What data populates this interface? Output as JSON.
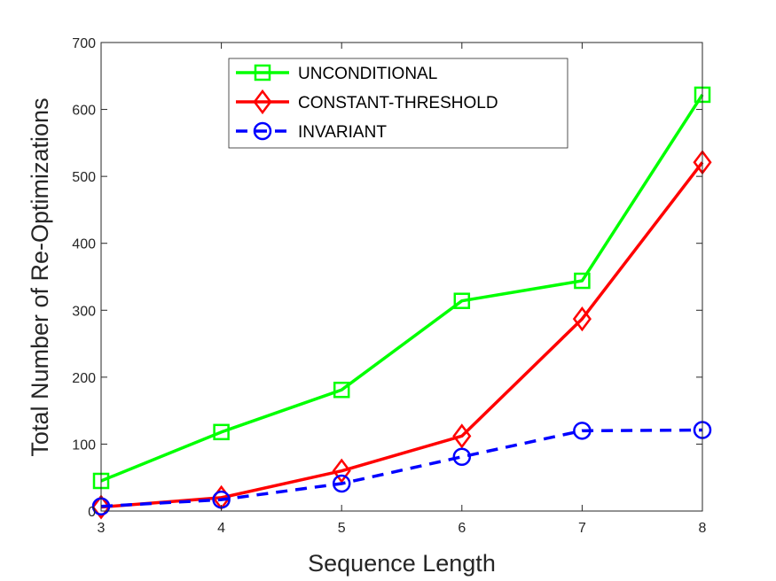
{
  "chart_data": {
    "type": "line",
    "title": "",
    "xlabel": "Sequence Length",
    "ylabel": "Total Number of Re-Optimizations",
    "x": [
      3,
      4,
      5,
      6,
      7,
      8
    ],
    "xlim": [
      3,
      8
    ],
    "ylim": [
      0,
      700
    ],
    "xticks": [
      3,
      4,
      5,
      6,
      7,
      8
    ],
    "yticks": [
      0,
      100,
      200,
      300,
      400,
      500,
      600,
      700
    ],
    "grid": false,
    "legend_position": "top-center",
    "series": [
      {
        "name": "UNCONDITIONAL",
        "values": [
          45,
          118,
          181,
          314,
          344,
          622
        ],
        "color": "#00ff00",
        "marker": "square",
        "line_style": "solid"
      },
      {
        "name": "CONSTANT-THRESHOLD",
        "values": [
          6,
          20,
          60,
          112,
          287,
          521
        ],
        "color": "#ff0000",
        "marker": "diamond",
        "line_style": "solid"
      },
      {
        "name": "INVARIANT",
        "values": [
          7,
          17,
          41,
          81,
          120,
          121
        ],
        "color": "#0000ff",
        "marker": "circle",
        "line_style": "dashed"
      }
    ]
  }
}
